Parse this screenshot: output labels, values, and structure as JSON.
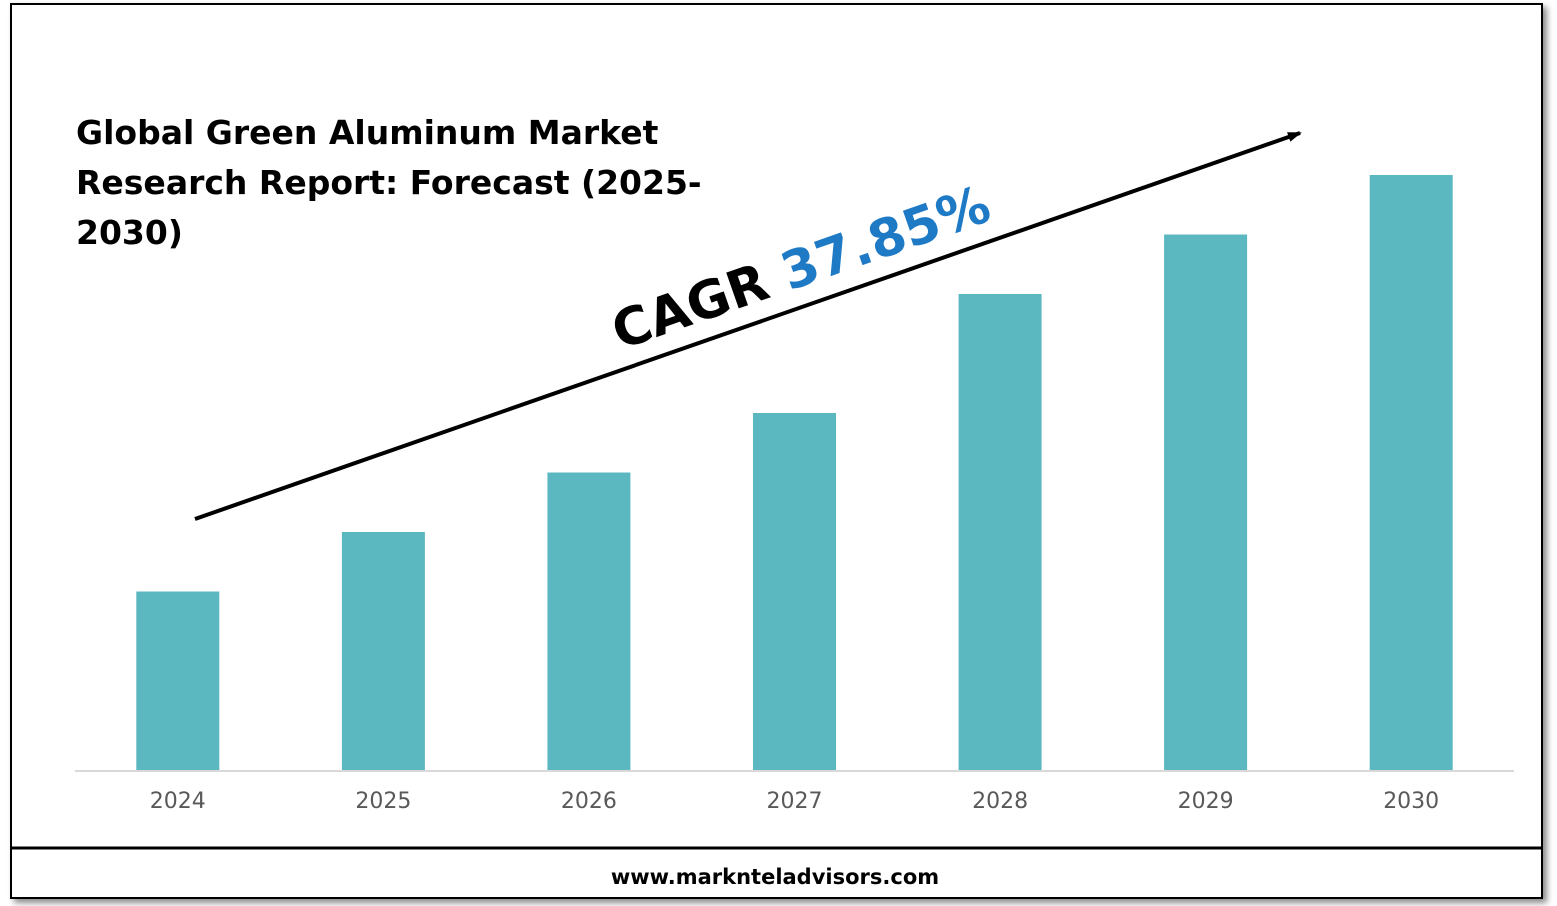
{
  "chart_data": {
    "type": "bar",
    "title_lines": [
      "Global Green Aluminum Market",
      "Research Report: Forecast (2025-",
      "2030)"
    ],
    "categories": [
      "2024",
      "2025",
      "2026",
      "2027",
      "2028",
      "2029",
      "2030"
    ],
    "values": [
      30,
      40,
      50,
      60,
      80,
      90,
      100
    ],
    "ylim": [
      0,
      100
    ],
    "grid": false,
    "legend": "none",
    "bar_color": "#5bb7c0",
    "axis_color": "#d9d9d9",
    "annotation": {
      "prefix": "CAGR ",
      "value": "37.85%",
      "prefix_color": "#000000",
      "value_color": "#1f7ac6"
    }
  },
  "footer": {
    "website": "www.marknteladvisors.com"
  }
}
